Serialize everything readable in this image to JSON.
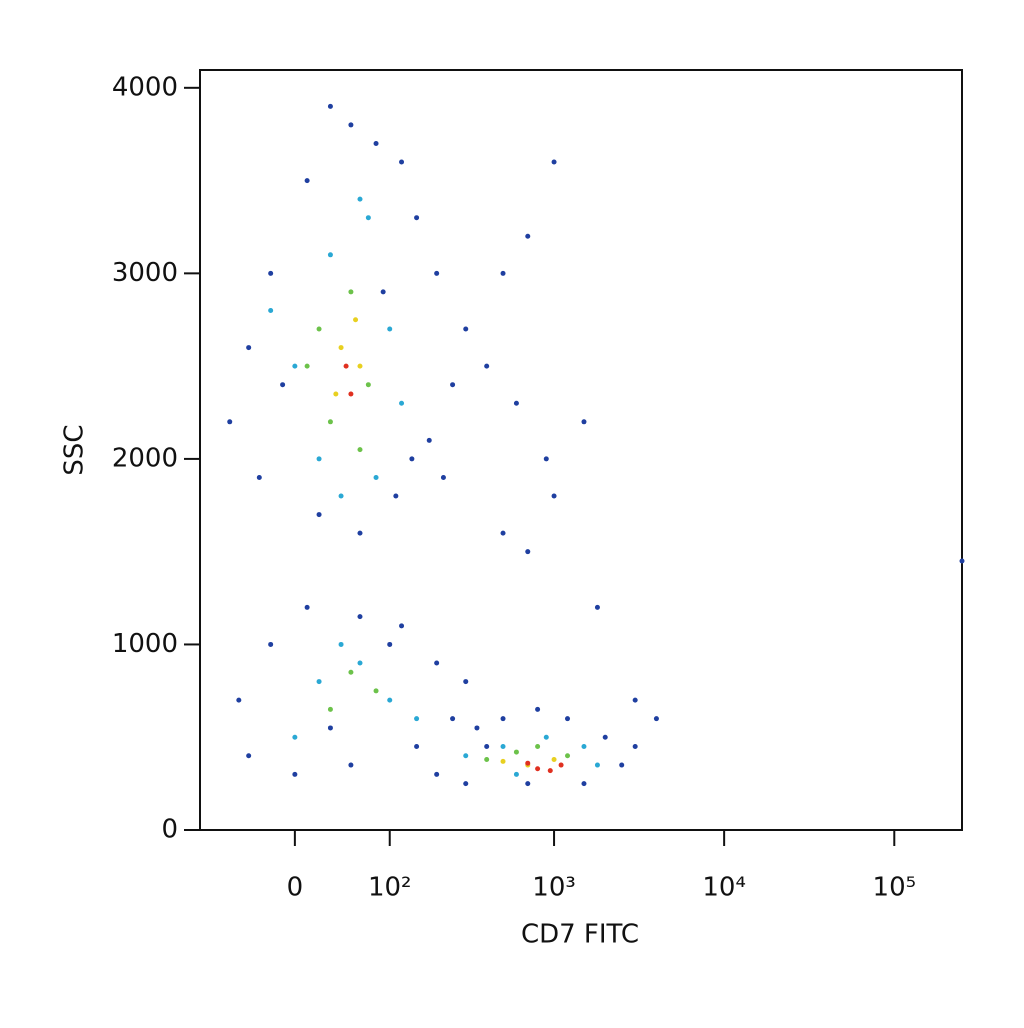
{
  "chart_data": {
    "type": "scatter",
    "x_label": "CD7 FITC",
    "y_label": "SSC",
    "xscale": "biexponential",
    "xlim": [
      -100,
      250000
    ],
    "xticks": [
      0,
      {
        "value": 100,
        "label": "10²"
      },
      {
        "value": 1000,
        "label": "10³"
      },
      {
        "value": 10000,
        "label": "10⁴"
      },
      {
        "value": 100000,
        "label": "10⁵"
      }
    ],
    "ylim": [
      0,
      4096
    ],
    "yticks": [
      0,
      1000,
      2000,
      3000,
      4000
    ],
    "series": [
      {
        "color": "#1f3fa0",
        "x": [
          -40,
          -20,
          10,
          50,
          80,
          120,
          150,
          200,
          90,
          -60,
          -30,
          20,
          60,
          110,
          180,
          250,
          300,
          400,
          600,
          900,
          1500,
          700,
          1000,
          500,
          30,
          -10,
          140,
          220,
          -50,
          -20,
          10,
          60,
          120,
          200,
          300,
          250,
          -40,
          0,
          50,
          150,
          100,
          30,
          200,
          300,
          400,
          500,
          800,
          1200,
          2000,
          3000,
          2500,
          1500,
          700,
          350,
          4000,
          1800,
          700,
          1000,
          250000,
          3000,
          500
        ],
        "values": [
          2600,
          3000,
          3500,
          3800,
          3700,
          3600,
          3300,
          3000,
          2900,
          2200,
          1900,
          1700,
          1600,
          1800,
          2100,
          2400,
          2700,
          2500,
          2300,
          2000,
          2200,
          3200,
          3600,
          3000,
          3900,
          2400,
          2000,
          1900,
          700,
          1000,
          1200,
          1150,
          1100,
          900,
          800,
          600,
          400,
          300,
          350,
          450,
          1000,
          550,
          300,
          250,
          450,
          600,
          650,
          600,
          500,
          450,
          350,
          250,
          250,
          550,
          600,
          1200,
          1500,
          1800,
          1450,
          700,
          1600
        ]
      },
      {
        "color": "#2aa8d4",
        "x": [
          0,
          30,
          70,
          100,
          20,
          80,
          -20,
          120,
          60,
          40,
          20,
          60,
          100,
          0,
          150,
          40,
          300,
          500,
          1500,
          600,
          1800,
          900
        ],
        "values": [
          2500,
          3100,
          3300,
          2700,
          2000,
          1900,
          2800,
          2300,
          3400,
          1800,
          800,
          900,
          700,
          500,
          600,
          1000,
          400,
          450,
          450,
          300,
          350,
          500
        ]
      },
      {
        "color": "#6cc24a",
        "x": [
          20,
          50,
          70,
          30,
          60,
          10,
          50,
          80,
          30,
          400,
          600,
          1200,
          800
        ],
        "values": [
          2700,
          2900,
          2400,
          2200,
          2050,
          2500,
          850,
          750,
          650,
          380,
          420,
          400,
          450
        ]
      },
      {
        "color": "#e8d020",
        "x": [
          40,
          55,
          35,
          60,
          700,
          1000,
          500
        ],
        "values": [
          2600,
          2750,
          2350,
          2500,
          350,
          380,
          370
        ]
      },
      {
        "color": "#e03020",
        "x": [
          45,
          50,
          800,
          950,
          1100,
          700
        ],
        "values": [
          2500,
          2350,
          330,
          320,
          350,
          360
        ]
      }
    ]
  }
}
